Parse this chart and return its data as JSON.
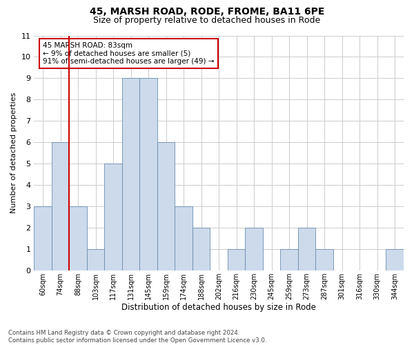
{
  "title": "45, MARSH ROAD, RODE, FROME, BA11 6PE",
  "subtitle": "Size of property relative to detached houses in Rode",
  "xlabel": "Distribution of detached houses by size in Rode",
  "ylabel": "Number of detached properties",
  "categories": [
    "60sqm",
    "74sqm",
    "88sqm",
    "103sqm",
    "117sqm",
    "131sqm",
    "145sqm",
    "159sqm",
    "174sqm",
    "188sqm",
    "202sqm",
    "216sqm",
    "230sqm",
    "245sqm",
    "259sqm",
    "273sqm",
    "287sqm",
    "301sqm",
    "316sqm",
    "330sqm",
    "344sqm"
  ],
  "values": [
    3,
    6,
    3,
    1,
    5,
    9,
    9,
    6,
    3,
    2,
    0,
    1,
    2,
    0,
    1,
    2,
    1,
    0,
    0,
    0,
    1
  ],
  "bar_color": "#ccdaeb",
  "bar_edge_color": "#6b8cae",
  "annotation_line1": "45 MARSH ROAD: 83sqm",
  "annotation_line2": "← 9% of detached houses are smaller (5)",
  "annotation_line3": "91% of semi-detached houses are larger (49) →",
  "annotation_box_color": "#ffffff",
  "annotation_box_edge_color": "#cc0000",
  "vline_color": "#cc0000",
  "vline_x_index": 1.5,
  "ylim": [
    0,
    11
  ],
  "yticks": [
    0,
    1,
    2,
    3,
    4,
    5,
    6,
    7,
    8,
    9,
    10,
    11
  ],
  "background_color": "#ffffff",
  "grid_color": "#cccccc",
  "footer_line1": "Contains HM Land Registry data © Crown copyright and database right 2024.",
  "footer_line2": "Contains public sector information licensed under the Open Government Licence v3.0."
}
